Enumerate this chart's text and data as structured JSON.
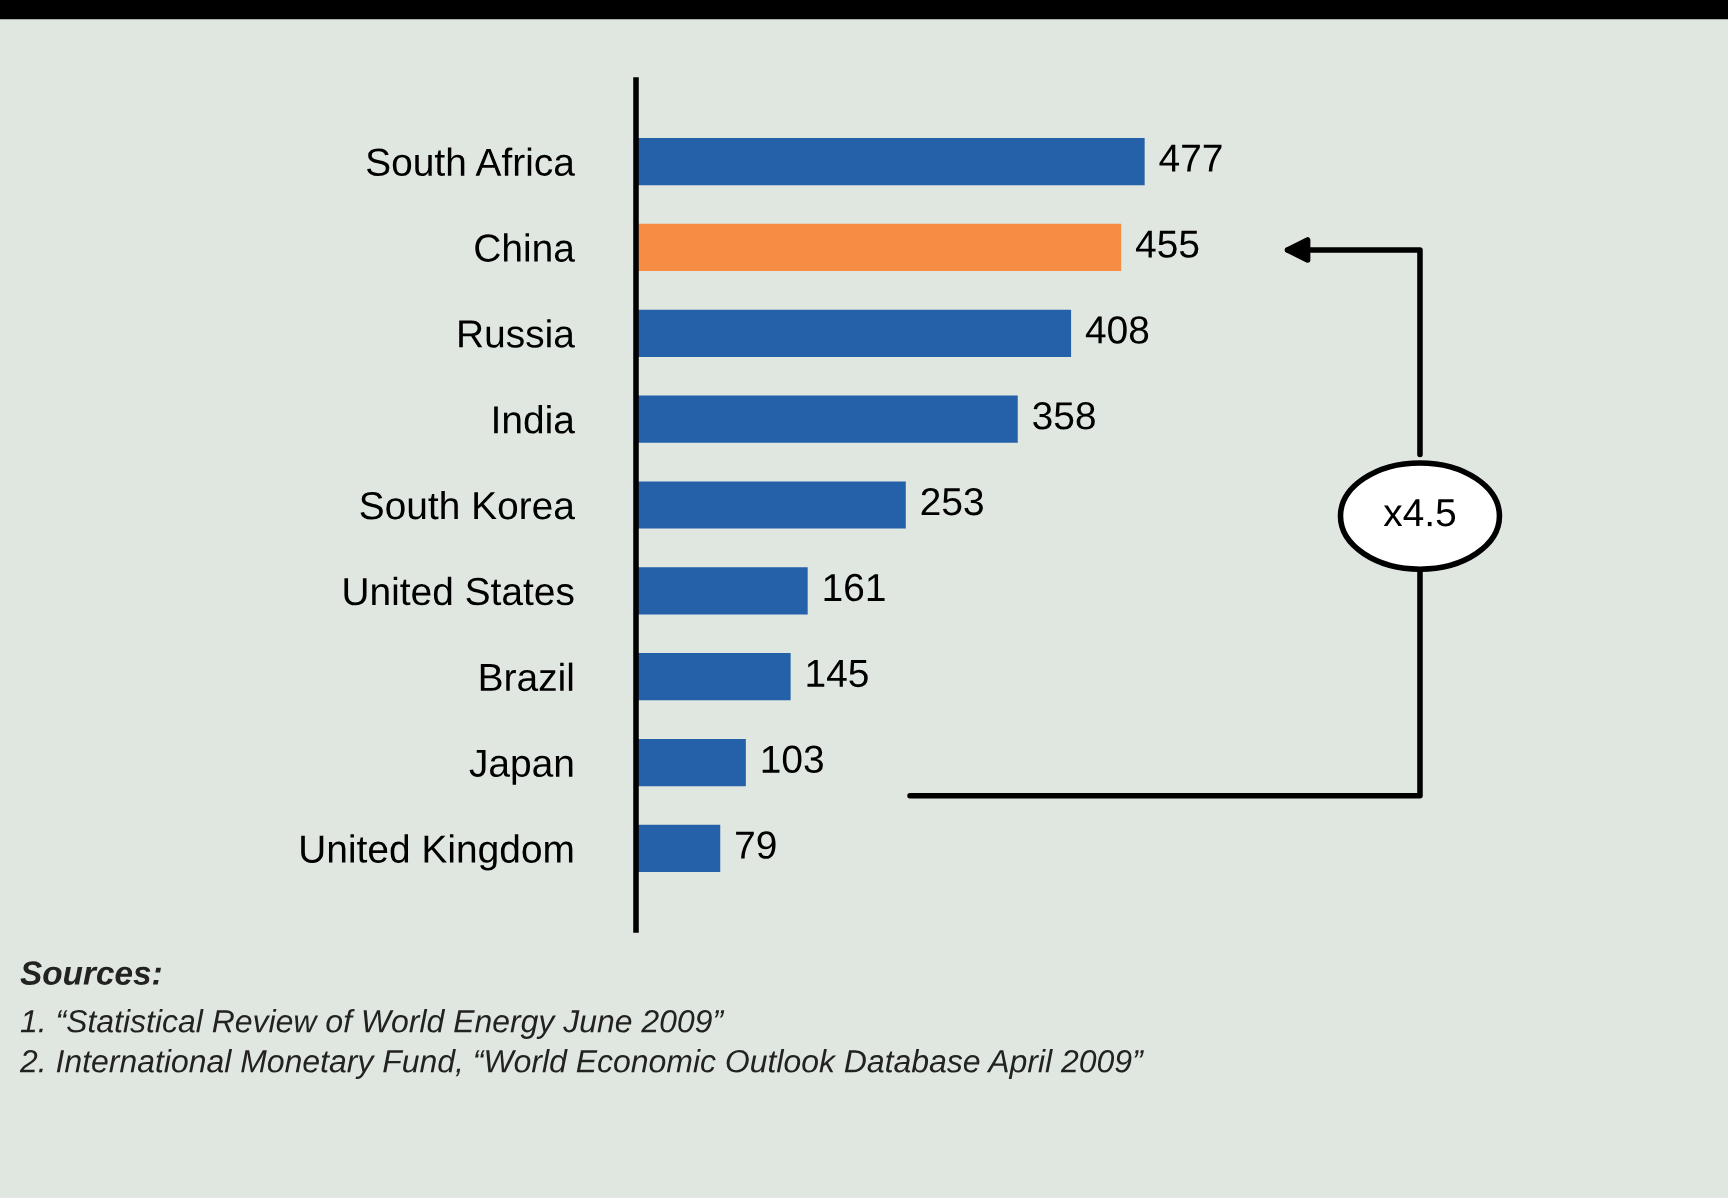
{
  "chart_data": {
    "type": "bar",
    "orientation": "horizontal",
    "data_labels": true,
    "categories": [
      "South Africa",
      "China",
      "Russia",
      "India",
      "South Korea",
      "United States",
      "Brazil",
      "Japan",
      "United Kingdom"
    ],
    "values": [
      477,
      455,
      408,
      358,
      253,
      161,
      145,
      103,
      79
    ],
    "colors": [
      "#2561a9",
      "#f68d45",
      "#2561a9",
      "#2561a9",
      "#2561a9",
      "#2561a9",
      "#2561a9",
      "#2561a9",
      "#2561a9"
    ],
    "grid": false,
    "legend": false,
    "annotations": [
      "x4.5",
      "Sources:",
      "1. “Statistical Review of World Energy June 2009”",
      "2. International Monetary Fund, “World Economic Outlook Database April 2009”"
    ]
  }
}
